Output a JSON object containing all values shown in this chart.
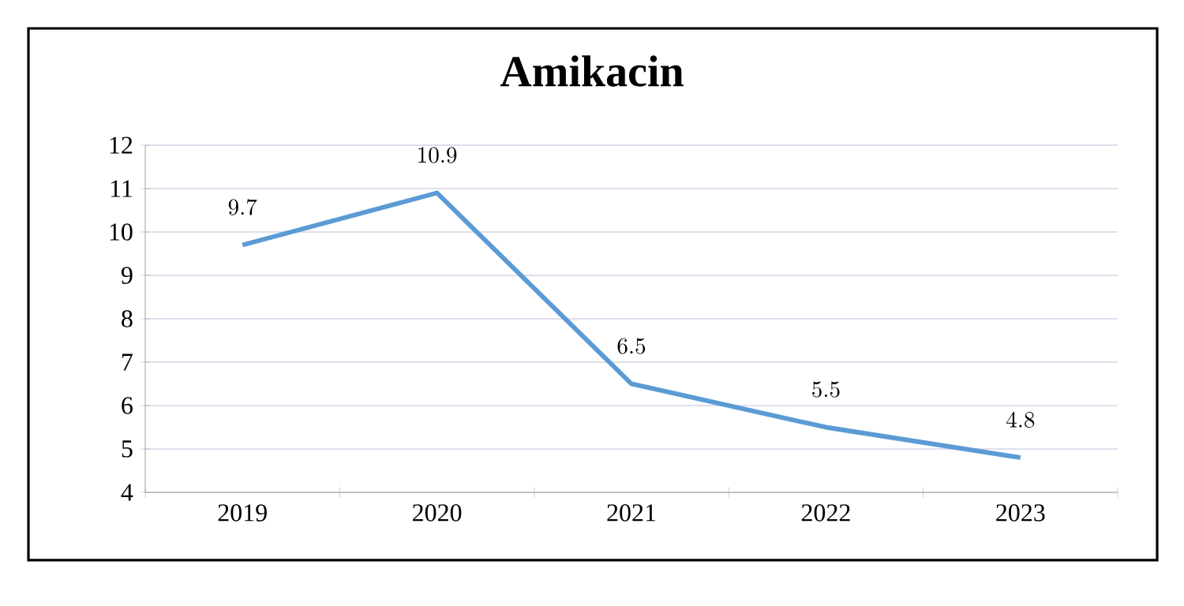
{
  "chart_data": {
    "type": "line",
    "title": "Amikacin",
    "categories": [
      "2019",
      "2020",
      "2021",
      "2022",
      "2023"
    ],
    "values": [
      9.7,
      10.9,
      6.5,
      5.5,
      4.8
    ],
    "color": "#5b9bd5",
    "ylim": [
      4,
      12
    ],
    "yticks": [
      4,
      5,
      6,
      7,
      8,
      9,
      10,
      11,
      12
    ],
    "grid": "y",
    "data_labels": true,
    "marker": "none"
  }
}
